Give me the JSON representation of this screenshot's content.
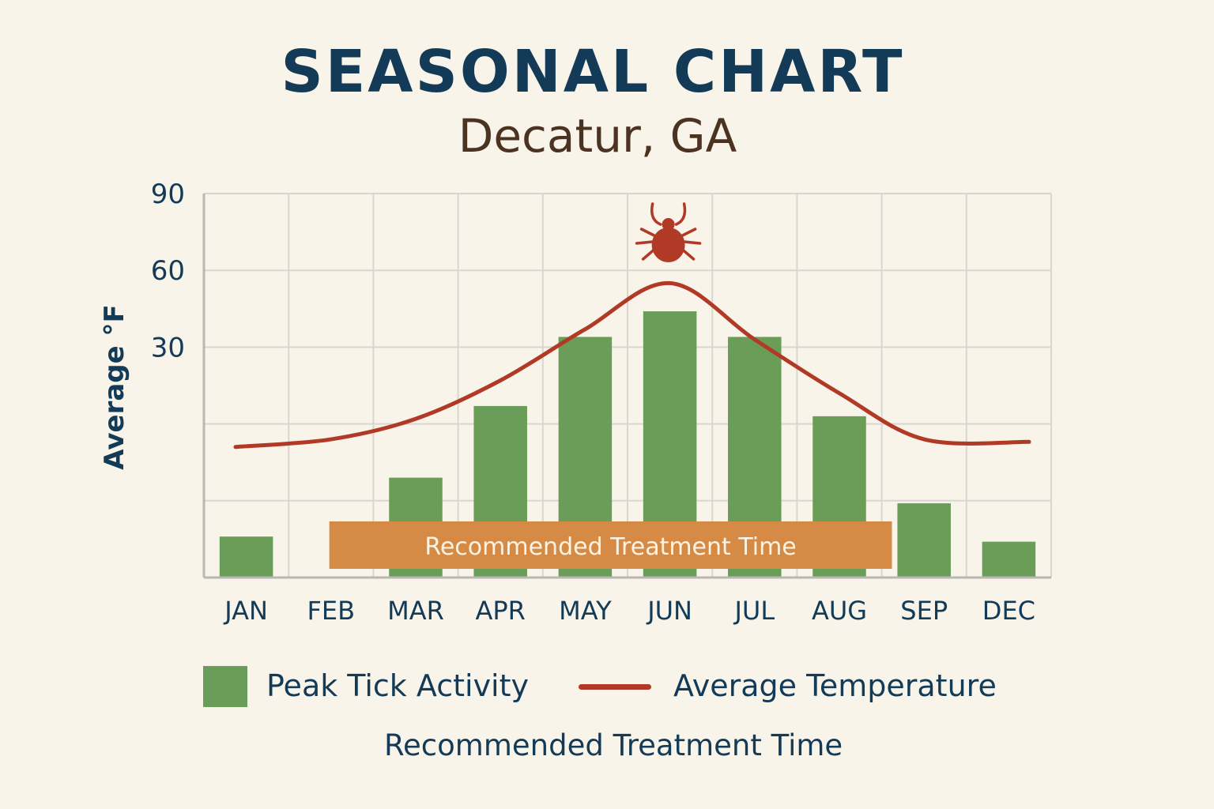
{
  "title": "SEASONAL CHART",
  "subtitle": "Decatur, GA",
  "colors": {
    "background": "#f8f4ea",
    "bars": "#6a9e58",
    "temperature_line": "#b13a27",
    "treatment_band": "#d58a45",
    "treatment_text": "#fbf3e4",
    "grid": "#d8d6cf",
    "axis": "#b9b7b1",
    "text": "#133b57",
    "tick_icon": "#b13a27"
  },
  "icons": {
    "peak_marker": "tick-icon"
  },
  "chart_data": {
    "type": "bar",
    "title": "SEASONAL CHART",
    "subtitle": "Decatur, GA",
    "ylabel": "Average °F",
    "xlabel": "",
    "ylim": [
      -60,
      90
    ],
    "yticks": [
      30,
      60,
      90
    ],
    "ytick_labels": [
      "30",
      "60",
      "90"
    ],
    "grid": true,
    "categories": [
      "JAN",
      "FEB",
      "MAR",
      "APR",
      "MAY",
      "JUN",
      "JUL",
      "AUG",
      "SEP",
      "DEC"
    ],
    "series": [
      {
        "name": "Peak Tick Activity",
        "type": "bar",
        "values": [
          -44,
          null,
          -21,
          7,
          34,
          44,
          34,
          3,
          -31,
          -46
        ]
      },
      {
        "name": "Average Temperature",
        "type": "line",
        "values": [
          -9,
          -6,
          2,
          17,
          37,
          55,
          33,
          12,
          -6,
          -7
        ]
      }
    ],
    "treatment_band": {
      "label": "Recommended Treatment Time",
      "start": "FEB",
      "end": "AUG"
    },
    "peak_marker": {
      "category": "JUN",
      "icon": "tick-icon"
    },
    "legend": {
      "position": "bottom",
      "items": [
        "Peak Tick Activity",
        "Average Temperature",
        "Recommended Treatment Time"
      ]
    }
  }
}
